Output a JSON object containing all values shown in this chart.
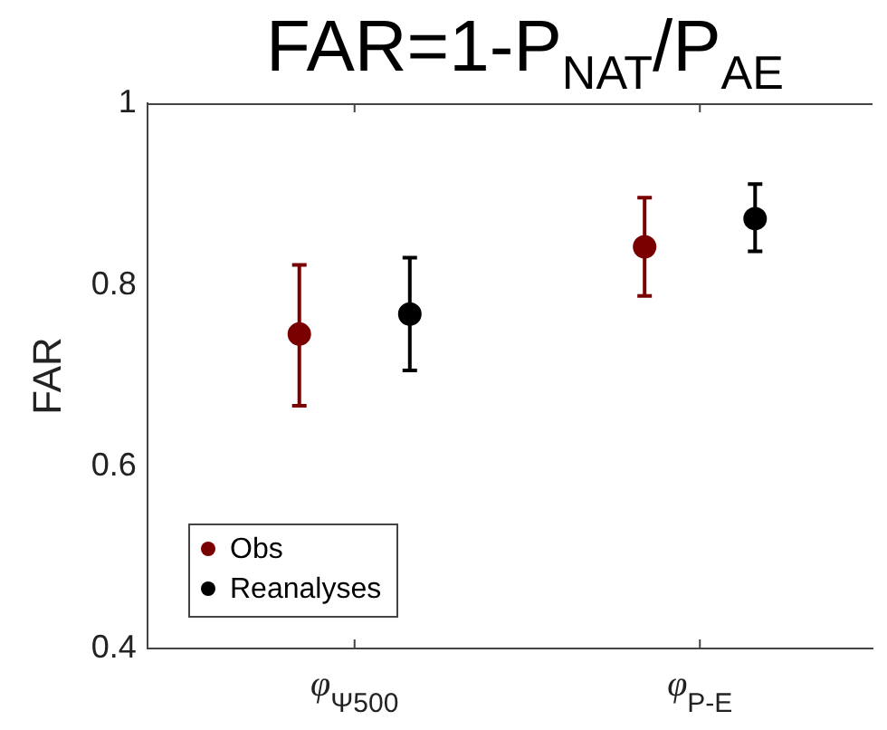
{
  "chart_data": {
    "type": "scatter",
    "title": "FAR=1-P$_{NAT}$/P$_{AE}$",
    "ylabel": "FAR",
    "categories": [
      "φ$_{Ψ500}$",
      "φ$_{P-E}$"
    ],
    "series": [
      {
        "name": "Obs",
        "color": "#7a0000",
        "values": [
          0.746,
          0.842
        ],
        "errors": [
          [
            0.667,
            0.822
          ],
          [
            0.788,
            0.896
          ]
        ]
      },
      {
        "name": "Reanalyses",
        "color": "#000000",
        "values": [
          0.768,
          0.873
        ],
        "errors": [
          [
            0.706,
            0.83
          ],
          [
            0.837,
            0.911
          ]
        ]
      }
    ],
    "ylim": [
      0.4,
      1
    ],
    "yticks": [
      0.4,
      0.6,
      0.8,
      1
    ],
    "grid": false,
    "legend": "bottom left",
    "marker": "circle"
  }
}
